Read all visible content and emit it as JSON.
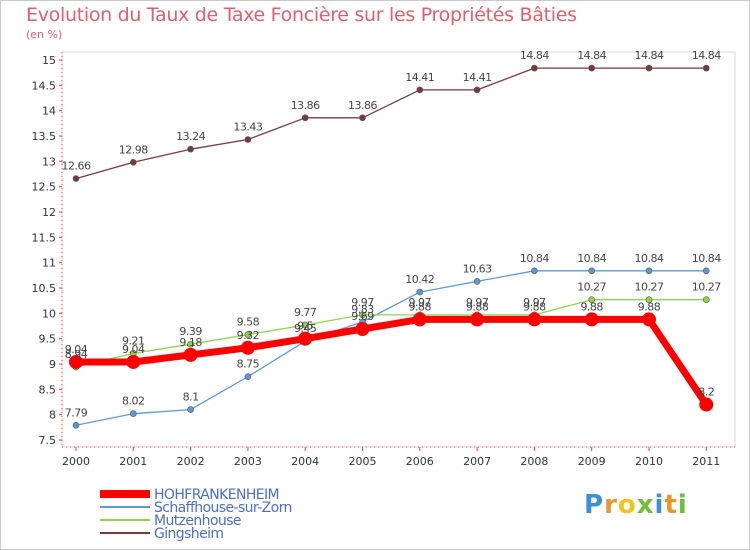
{
  "header": {
    "title": "Evolution du Taux de Taxe Foncière sur les Propriétés Bâties",
    "unit": "(en %)"
  },
  "logo": {
    "letters": [
      "P",
      "r",
      "o",
      "x",
      "i",
      "t",
      "i"
    ],
    "colors": [
      "#3d8fd6",
      "#e8962e",
      "#f0c419",
      "#6fbf3a",
      "#3d8fd6",
      "#e8962e",
      "#6fbf3a"
    ]
  },
  "chart_data": {
    "type": "line",
    "x": [
      "2000",
      "2001",
      "2002",
      "2003",
      "2004",
      "2005",
      "2006",
      "2007",
      "2008",
      "2009",
      "2010",
      "2011"
    ],
    "ylim": [
      7.5,
      15
    ],
    "yticks": [
      "7.5",
      "8",
      "8.5",
      "9",
      "9.5",
      "10",
      "10.5",
      "11",
      "11.5",
      "12",
      "12.5",
      "13",
      "13.5",
      "14",
      "14.5",
      "15"
    ],
    "grid": false,
    "legend_placement": "bottom",
    "series": [
      {
        "name": "HOHFRANKENHEIM",
        "color": "#ff0000",
        "width": 7,
        "marker": 7,
        "values": [
          9.04,
          9.04,
          9.18,
          9.32,
          9.5,
          9.69,
          9.88,
          9.88,
          9.88,
          9.88,
          9.88,
          8.2
        ],
        "labels": [
          "9.04",
          "9.04",
          "9.18",
          "9.32",
          "9.5",
          "9.69",
          "9.88",
          "9.88",
          "9.88",
          "9.88",
          "9.88",
          "8.2"
        ]
      },
      {
        "name": "Schaffhouse-sur-Zorn",
        "color": "#5b9bd5",
        "width": 1.3,
        "marker": 3,
        "values": [
          7.79,
          8.02,
          8.1,
          8.75,
          9.45,
          9.83,
          10.42,
          10.63,
          10.84,
          10.84,
          10.84,
          10.84
        ],
        "labels": [
          "7.79",
          "8.02",
          "8.1",
          "8.75",
          "9.45",
          "9.83",
          "10.42",
          "10.63",
          "10.84",
          "10.84",
          "10.84",
          "10.84"
        ]
      },
      {
        "name": "Mutzenhouse",
        "color": "#8fd64a",
        "width": 1.3,
        "marker": 3,
        "values": [
          8.94,
          9.21,
          9.39,
          9.58,
          9.77,
          9.97,
          9.97,
          9.97,
          9.97,
          10.27,
          10.27,
          10.27
        ],
        "labels": [
          "8.94",
          "9.21",
          "9.39",
          "9.58",
          "9.77",
          "9.97",
          "9.97",
          "9.97",
          "9.97",
          "10.27",
          "10.27",
          "10.27"
        ]
      },
      {
        "name": "Gingsheim",
        "color": "#7a3a3a",
        "width": 1.3,
        "marker": 3,
        "values": [
          12.66,
          12.98,
          13.24,
          13.43,
          13.86,
          13.86,
          14.41,
          14.41,
          14.84,
          14.84,
          14.84,
          14.84
        ],
        "labels": [
          "12.66",
          "12.98",
          "13.24",
          "13.43",
          "13.86",
          "13.86",
          "14.41",
          "14.41",
          "14.84",
          "14.84",
          "14.84",
          "14.84"
        ]
      }
    ]
  }
}
